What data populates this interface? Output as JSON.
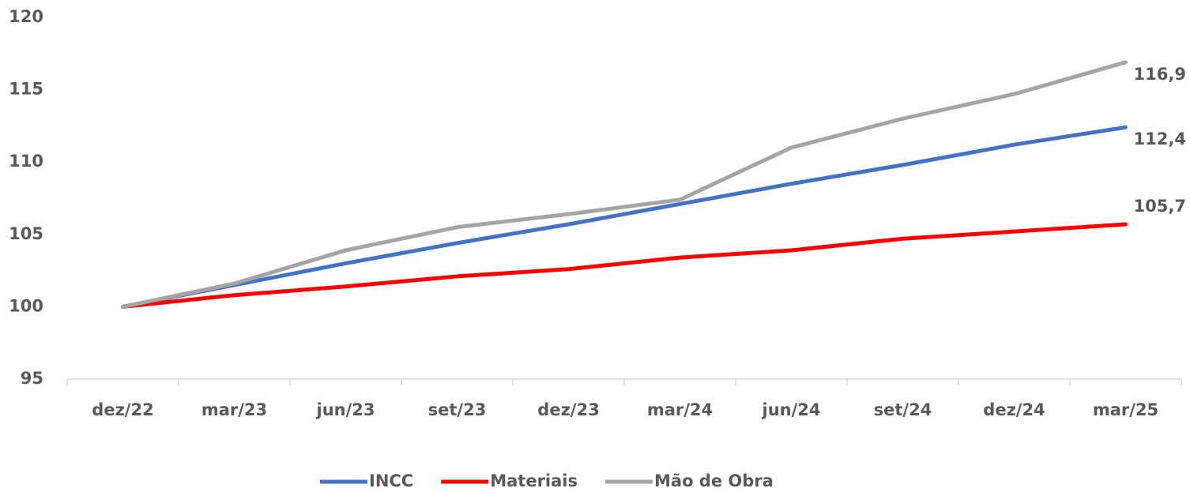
{
  "chart_data": {
    "type": "line",
    "categories": [
      "dez/22",
      "mar/23",
      "jun/23",
      "set/23",
      "dez/23",
      "mar/24",
      "jun/24",
      "set/24",
      "dez/24",
      "mar/25"
    ],
    "series": [
      {
        "name": "INCC",
        "color": "#4472c4",
        "values": [
          100,
          101.5,
          103.0,
          104.4,
          105.7,
          107.1,
          108.5,
          109.8,
          111.2,
          112.4
        ],
        "value_labels": [
          null,
          null,
          null,
          null,
          null,
          null,
          null,
          null,
          null,
          "112,4"
        ]
      },
      {
        "name": "Materiais",
        "color": "#ff0000",
        "values": [
          100,
          100.8,
          101.4,
          102.1,
          102.6,
          103.4,
          103.9,
          104.7,
          105.2,
          105.7
        ],
        "value_labels": [
          null,
          null,
          null,
          null,
          null,
          null,
          null,
          null,
          null,
          "105,7"
        ]
      },
      {
        "name": "Mão de Obra",
        "color": "#a5a5a5",
        "values": [
          100,
          101.6,
          103.9,
          105.5,
          106.4,
          107.4,
          111.0,
          113.0,
          114.7,
          116.9
        ],
        "value_labels": [
          null,
          null,
          null,
          null,
          null,
          null,
          null,
          null,
          null,
          "116,9"
        ]
      }
    ],
    "ylim": [
      95,
      120
    ],
    "yticks": [
      95,
      100,
      105,
      110,
      115,
      120
    ],
    "grid": false,
    "legend": "bottom"
  }
}
